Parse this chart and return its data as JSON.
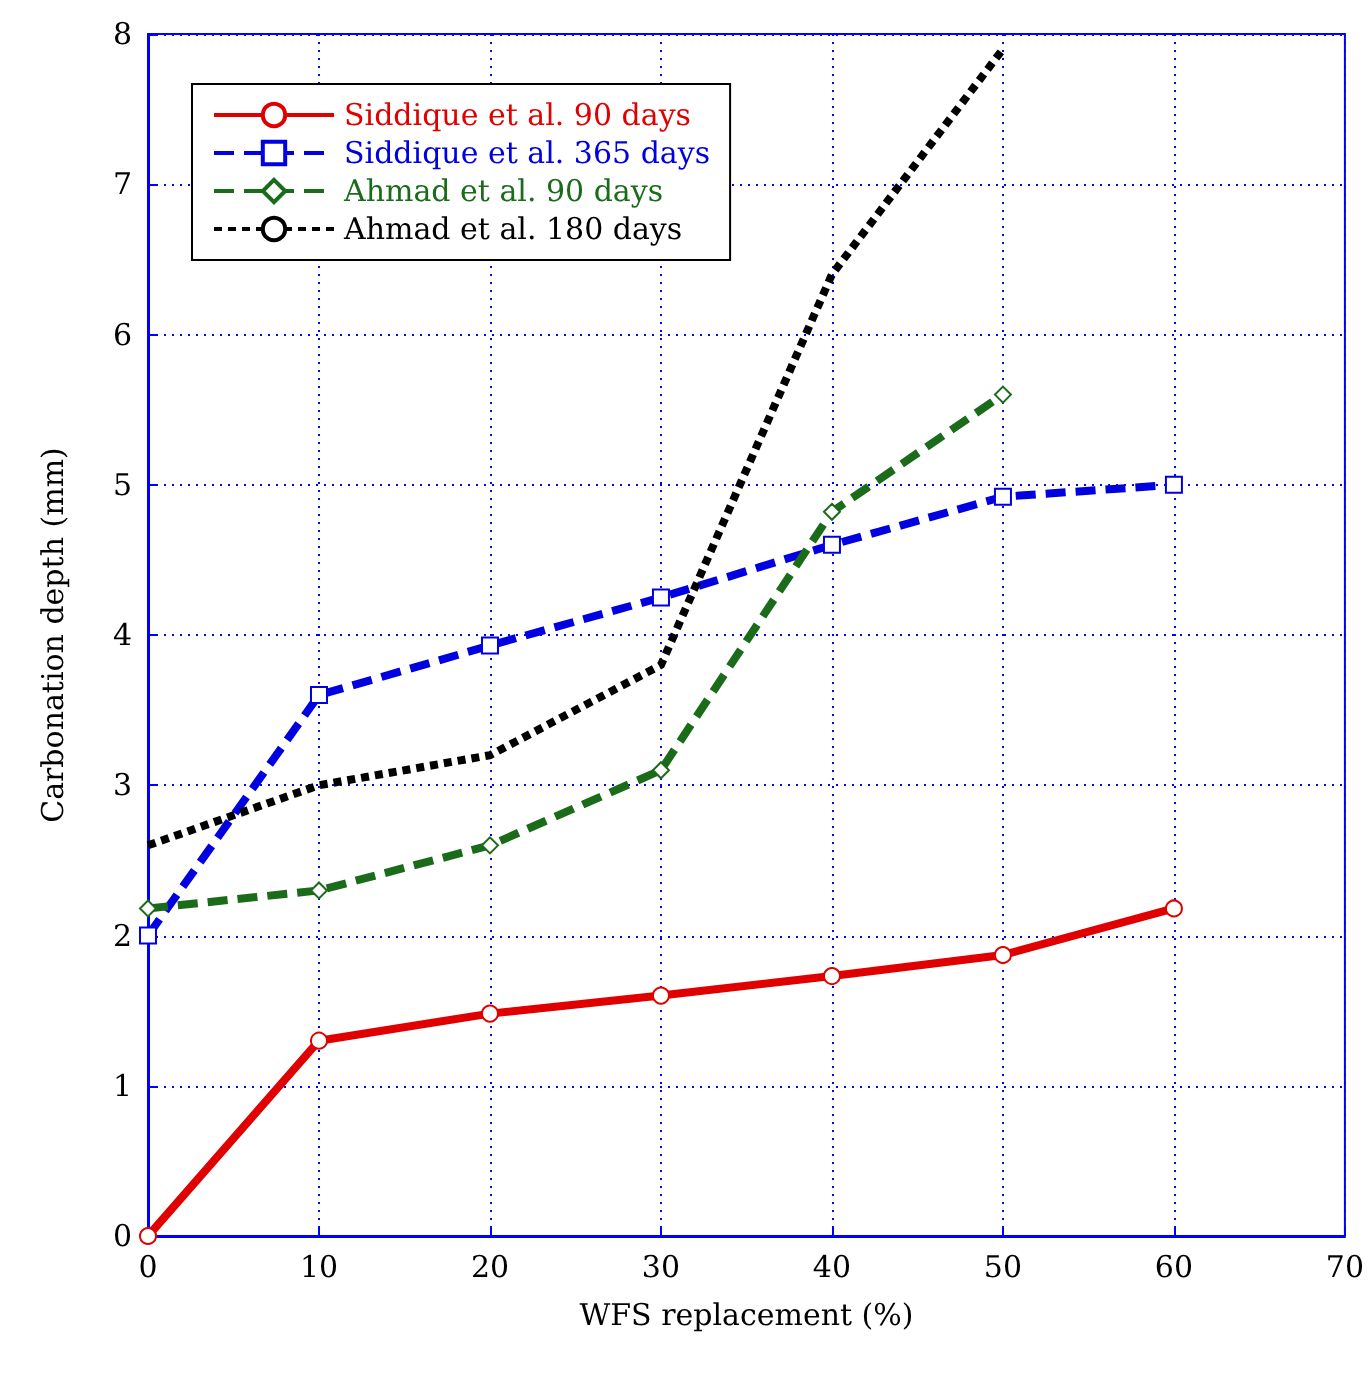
{
  "chart_data": {
    "type": "line",
    "xlabel": "WFS replacement (%)",
    "ylabel": "Carbonation depth (mm)",
    "xlim": [
      0,
      70
    ],
    "xticks": [
      0,
      10,
      20,
      30,
      40,
      50,
      60,
      70
    ],
    "ylim": [
      0,
      8
    ],
    "yticks": [
      0,
      1,
      2,
      3,
      4,
      5,
      6,
      7,
      8
    ],
    "grid": true,
    "legend": "top left",
    "series": [
      {
        "name": "Siddique et al. 90 days",
        "color": "#e00000",
        "marker": "circle",
        "line_style": "solid",
        "x": [
          0,
          10,
          20,
          30,
          40,
          50,
          60
        ],
        "values": [
          0,
          1.3,
          1.48,
          1.6,
          1.73,
          1.87,
          2.18
        ]
      },
      {
        "name": "Siddique et al. 365 days",
        "color": "#0000e0",
        "marker": "square",
        "line_style": "dashed",
        "x": [
          0,
          10,
          20,
          30,
          40,
          50,
          60
        ],
        "values": [
          2.0,
          3.6,
          3.93,
          4.25,
          4.6,
          4.92,
          5.0
        ]
      },
      {
        "name": "Ahmad et al. 90 days",
        "color": "#1a6b1a",
        "marker": "diamond",
        "line_style": "dashed",
        "x": [
          0,
          10,
          20,
          30,
          40,
          50
        ],
        "values": [
          2.18,
          2.3,
          2.6,
          3.1,
          4.82,
          5.6
        ]
      },
      {
        "name": "Ahmad et al. 180 days",
        "color": "#000000",
        "marker": "none",
        "line_style": "dotted",
        "x": [
          0,
          10,
          20,
          30,
          40,
          50
        ],
        "values": [
          2.6,
          3.0,
          3.2,
          3.8,
          6.4,
          7.9
        ]
      }
    ]
  }
}
